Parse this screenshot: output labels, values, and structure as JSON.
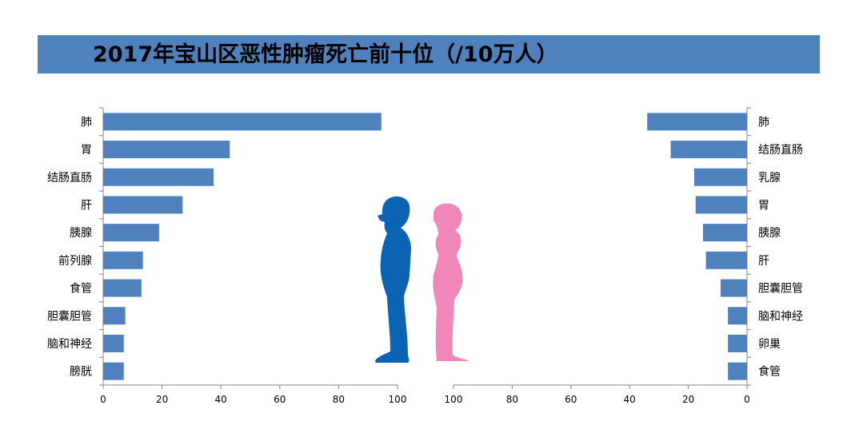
{
  "title": "2017年宝山区恶性肿瘤死亡前十位（/10万人）",
  "colors": {
    "bar": "#4f81bd",
    "title_bar": "#4f81bd",
    "axis": "#868686",
    "male_figure": "#0b63b3",
    "female_figure": "#ef7fb6"
  },
  "chart_data": [
    {
      "type": "bar",
      "orientation": "horizontal",
      "xlim": [
        0,
        100
      ],
      "xticks": [
        0,
        20,
        40,
        60,
        80,
        100
      ],
      "categories": [
        "肺",
        "胃",
        "结肠直肠",
        "肝",
        "胰腺",
        "前列腺",
        "食管",
        "胆囊胆管",
        "脑和神经",
        "膀胱"
      ],
      "values": [
        94.5,
        43,
        37.5,
        27,
        19,
        13.5,
        13,
        7.5,
        7,
        7
      ]
    },
    {
      "type": "bar",
      "orientation": "horizontal",
      "direction": "reversed",
      "xlim": [
        0,
        100
      ],
      "xticks": [
        100,
        80,
        60,
        40,
        20,
        0
      ],
      "categories": [
        "肺",
        "结肠直肠",
        "乳腺",
        "胃",
        "胰腺",
        "肝",
        "胆囊胆管",
        "脑和神经",
        "卵巢",
        "食管"
      ],
      "values": [
        34,
        26,
        18,
        17.5,
        15,
        14,
        9,
        6.5,
        6.5,
        6.5
      ]
    }
  ]
}
